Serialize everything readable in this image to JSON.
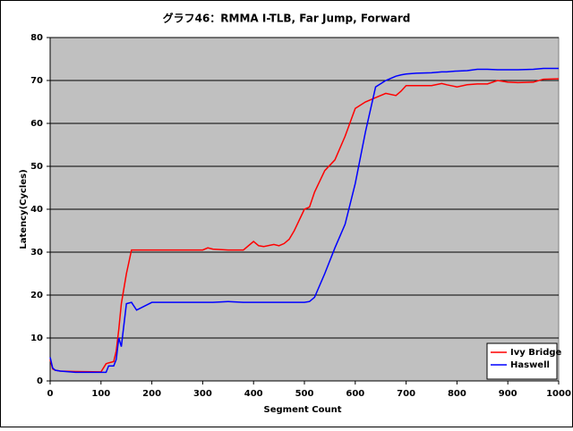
{
  "chart_data": {
    "type": "line",
    "title": "グラフ46：RMMA I-TLB, Far Jump, Forward",
    "x_label": "Segment Count",
    "y_label": "Latency(Cycles)",
    "x": [
      0,
      5,
      10,
      20,
      50,
      100,
      110,
      115,
      125,
      130,
      135,
      140,
      150,
      160,
      170,
      200,
      250,
      300,
      310,
      320,
      350,
      380,
      400,
      410,
      420,
      440,
      450,
      460,
      470,
      480,
      500,
      510,
      520,
      540,
      560,
      580,
      600,
      620,
      640,
      660,
      680,
      690,
      700,
      720,
      750,
      770,
      780,
      800,
      820,
      840,
      860,
      880,
      900,
      920,
      950,
      970,
      1000
    ],
    "series": [
      {
        "name": "Ivy Bridge",
        "color": "#ff0000",
        "values": [
          5,
          2.8,
          2.5,
          2.3,
          2.2,
          2.1,
          4,
          4.2,
          4.5,
          7,
          12,
          18,
          25,
          30.5,
          30.5,
          30.5,
          30.5,
          30.5,
          31,
          30.7,
          30.5,
          30.5,
          32.5,
          31.5,
          31.3,
          31.8,
          31.5,
          32,
          33,
          35,
          40,
          40.5,
          44,
          49,
          51.5,
          57,
          63.5,
          65,
          66,
          67,
          66.5,
          67.5,
          68.8,
          68.8,
          68.8,
          69.3,
          69,
          68.5,
          69,
          69.2,
          69.2,
          70,
          69.6,
          69.5,
          69.6,
          70.3,
          70.4
        ]
      },
      {
        "name": "Haswell",
        "color": "#0000ff",
        "values": [
          5.5,
          3,
          2.5,
          2.3,
          2,
          2,
          2,
          3.5,
          3.5,
          5,
          10,
          8,
          18,
          18.3,
          16.5,
          18.3,
          18.3,
          18.3,
          18.3,
          18.3,
          18.5,
          18.3,
          18.3,
          18.3,
          18.3,
          18.3,
          18.3,
          18.3,
          18.3,
          18.3,
          18.3,
          18.5,
          19.5,
          25,
          31,
          36.5,
          46,
          58,
          68.5,
          70,
          71,
          71.3,
          71.5,
          71.7,
          71.8,
          72,
          72,
          72.2,
          72.3,
          72.6,
          72.6,
          72.5,
          72.5,
          72.5,
          72.6,
          72.8,
          72.8
        ]
      }
    ],
    "xlim": [
      0,
      1000
    ],
    "xticks": [
      0,
      100,
      200,
      300,
      400,
      500,
      600,
      700,
      800,
      900,
      1000
    ],
    "ylim": [
      0,
      80
    ],
    "yticks": [
      0,
      10,
      20,
      30,
      40,
      50,
      60,
      70,
      80
    ],
    "grid": true,
    "legend": "lower right"
  }
}
